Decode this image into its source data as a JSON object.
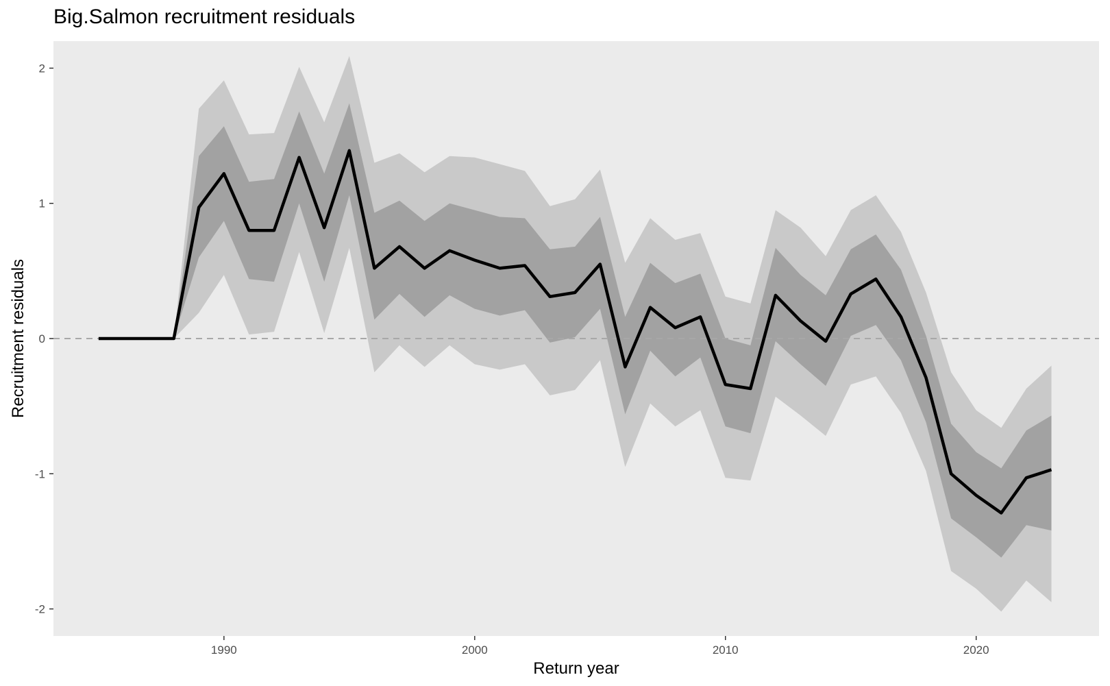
{
  "chart_data": {
    "type": "area",
    "title": "Big.Salmon recruitment residuals",
    "xlabel": "Return year",
    "ylabel": "Recruitment residuals",
    "xlim": [
      1983.2,
      2024.9
    ],
    "ylim": [
      -2.2,
      2.2
    ],
    "x_ticks": [
      1990,
      2000,
      2010,
      2020
    ],
    "y_ticks": [
      -2,
      -1,
      0,
      1,
      2
    ],
    "y_tick_labels": [
      "-2",
      "-1",
      "0",
      "1",
      "2"
    ],
    "grid": false,
    "reference_line": 0,
    "colors": {
      "panel": "#ebebeb",
      "outer_band": "#c9c9c9",
      "inner_band": "#a2a2a2",
      "median_line": "#000000",
      "reference_line": "#a8a8a8"
    },
    "x": [
      1985,
      1986,
      1987,
      1988,
      1989,
      1990,
      1991,
      1992,
      1993,
      1994,
      1995,
      1996,
      1997,
      1998,
      1999,
      2000,
      2001,
      2002,
      2003,
      2004,
      2005,
      2006,
      2007,
      2008,
      2009,
      2010,
      2011,
      2012,
      2013,
      2014,
      2015,
      2016,
      2017,
      2018,
      2019,
      2020,
      2021,
      2022,
      2023
    ],
    "median": [
      0,
      0,
      0,
      0,
      0.97,
      1.22,
      0.8,
      0.8,
      1.34,
      0.82,
      1.39,
      0.52,
      0.68,
      0.52,
      0.65,
      0.58,
      0.52,
      0.54,
      0.31,
      0.34,
      0.55,
      -0.21,
      0.23,
      0.08,
      0.16,
      -0.34,
      -0.37,
      0.32,
      0.13,
      -0.02,
      0.33,
      0.44,
      0.16,
      -0.29,
      -1.0,
      -1.16,
      -1.29,
      -1.03,
      -0.97
    ],
    "inner_lower": [
      0,
      0,
      0,
      0,
      0.6,
      0.87,
      0.44,
      0.42,
      1.0,
      0.42,
      1.06,
      0.14,
      0.33,
      0.16,
      0.32,
      0.22,
      0.17,
      0.21,
      -0.03,
      0.01,
      0.22,
      -0.56,
      -0.09,
      -0.28,
      -0.14,
      -0.65,
      -0.7,
      -0.02,
      -0.19,
      -0.35,
      0.02,
      0.1,
      -0.16,
      -0.62,
      -1.33,
      -1.47,
      -1.62,
      -1.38,
      -1.42
    ],
    "inner_upper": [
      0,
      0,
      0,
      0,
      1.35,
      1.57,
      1.16,
      1.18,
      1.68,
      1.22,
      1.74,
      0.93,
      1.02,
      0.87,
      1.0,
      0.95,
      0.9,
      0.89,
      0.66,
      0.68,
      0.9,
      0.16,
      0.56,
      0.41,
      0.48,
      0.0,
      -0.05,
      0.67,
      0.47,
      0.32,
      0.66,
      0.77,
      0.51,
      0.02,
      -0.63,
      -0.84,
      -0.96,
      -0.68,
      -0.57
    ],
    "outer_lower": [
      0,
      0,
      0,
      0,
      0.19,
      0.47,
      0.03,
      0.05,
      0.64,
      0.04,
      0.67,
      -0.25,
      -0.05,
      -0.21,
      -0.05,
      -0.19,
      -0.23,
      -0.19,
      -0.42,
      -0.38,
      -0.16,
      -0.95,
      -0.48,
      -0.65,
      -0.53,
      -1.03,
      -1.05,
      -0.43,
      -0.57,
      -0.72,
      -0.34,
      -0.28,
      -0.55,
      -0.98,
      -1.72,
      -1.85,
      -2.02,
      -1.79,
      -1.95
    ],
    "outer_upper": [
      0,
      0,
      0,
      0,
      1.7,
      1.91,
      1.51,
      1.52,
      2.01,
      1.6,
      2.09,
      1.3,
      1.37,
      1.23,
      1.35,
      1.34,
      1.29,
      1.24,
      0.98,
      1.03,
      1.25,
      0.56,
      0.89,
      0.73,
      0.78,
      0.31,
      0.26,
      0.95,
      0.82,
      0.61,
      0.95,
      1.06,
      0.79,
      0.34,
      -0.25,
      -0.53,
      -0.66,
      -0.37,
      -0.2
    ]
  }
}
